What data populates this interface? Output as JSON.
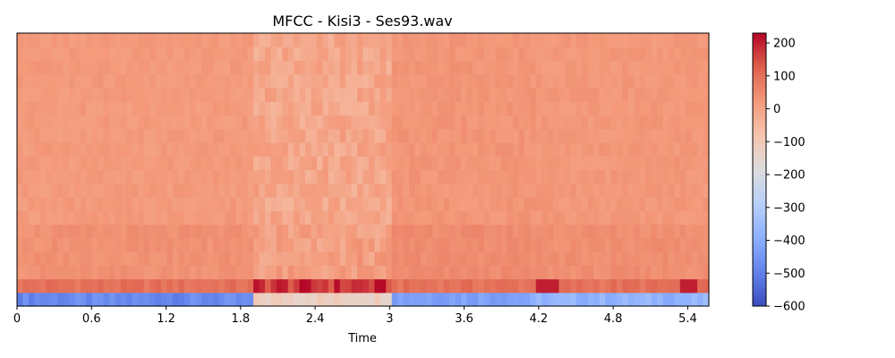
{
  "chart_data": {
    "type": "heatmap",
    "title": "MFCC - Kisi3 - Ses93.wav",
    "xlabel": "Time",
    "ylabel": "",
    "colormap": "coolwarm",
    "xlim": [
      0,
      5.57
    ],
    "x_ticks": [
      0,
      0.6,
      1.2,
      1.8,
      2.4,
      3,
      3.6,
      4.2,
      4.8,
      5.4
    ],
    "x_tick_labels": [
      "0",
      "0.6",
      "1.2",
      "1.8",
      "2.4",
      "3",
      "3.6",
      "4.2",
      "4.8",
      "5.4"
    ],
    "colorbar": {
      "range": [
        -600,
        230
      ],
      "ticks": [
        200,
        100,
        0,
        -100,
        -200,
        -300,
        -400,
        -500,
        -600
      ],
      "tick_labels": [
        "200",
        "100",
        "0",
        "−100",
        "−200",
        "−300",
        "−400",
        "−500",
        "−600"
      ]
    },
    "coefficients": 20,
    "frames": 120,
    "time_segments": [
      {
        "start": 0.0,
        "end": 1.9,
        "energy": "low",
        "c0_approx": -480,
        "other_approx": 20
      },
      {
        "start": 1.9,
        "end": 3.0,
        "energy": "high",
        "c0_approx": -120,
        "other_approx": 0
      },
      {
        "start": 3.0,
        "end": 4.2,
        "energy": "medium",
        "c0_approx": -420,
        "other_approx": 30
      },
      {
        "start": 4.2,
        "end": 5.57,
        "energy": "medium",
        "c0_approx": -380,
        "other_approx": 25
      }
    ],
    "notes_visible_peak_values": {
      "c1_max": 230,
      "c0_min": -600
    }
  }
}
